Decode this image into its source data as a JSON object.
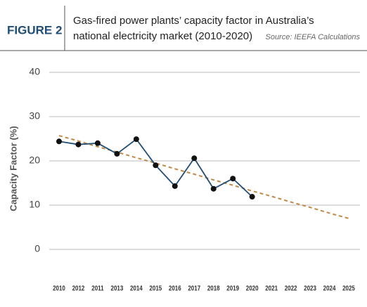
{
  "header": {
    "label": "FIGURE 2",
    "title_line1": "Gas-fired power plants’ capacity factor in Australia’s",
    "title_line2": "national electricity market (2010-2020)",
    "source": "Source: IEEFA Calculations"
  },
  "chart_data": {
    "type": "line",
    "categories": [
      "2010",
      "2012",
      "2011",
      "2013",
      "2014",
      "2015",
      "2016",
      "2017",
      "2018",
      "2019",
      "2020",
      "2021",
      "2022",
      "2023",
      "2024",
      "2025"
    ],
    "y_label": "Capacity Factor (%)",
    "ylim": [
      0,
      40
    ],
    "yticks": [
      0,
      10,
      20,
      30,
      40
    ],
    "grid": true,
    "series": [
      {
        "color": "#1f4e79",
        "markers": true,
        "dashed": false,
        "values": [
          24.4,
          23.7,
          24.0,
          21.6,
          24.9,
          19.0,
          14.3,
          20.6,
          13.7,
          16.0,
          11.9,
          null,
          null,
          null,
          null,
          null
        ]
      },
      {
        "color": "#c08a45",
        "markers": false,
        "dashed": true,
        "values": [
          25.7,
          24.5,
          23.2,
          22.0,
          20.7,
          19.5,
          18.2,
          17.0,
          15.7,
          14.5,
          13.2,
          12.0,
          10.7,
          9.5,
          8.2,
          7.0
        ]
      }
    ]
  }
}
